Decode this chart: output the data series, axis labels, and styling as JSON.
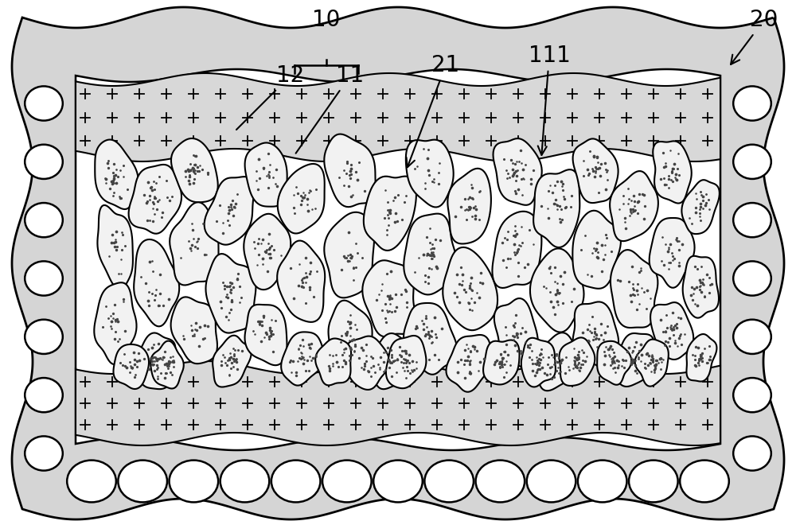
{
  "background_color": "#ffffff",
  "outer_fill_color": "#e0e0e0",
  "inner_fill_color": "#ffffff",
  "cross_band_fill": "#d8d8d8",
  "blob_fill_color": "#f0f0f0",
  "blob_edge_color": "#000000",
  "circle_fill": "#ffffff",
  "circle_edge": "#000000",
  "label_fontsize": 20,
  "figsize": [
    10.0,
    6.55
  ],
  "dpi": 100
}
